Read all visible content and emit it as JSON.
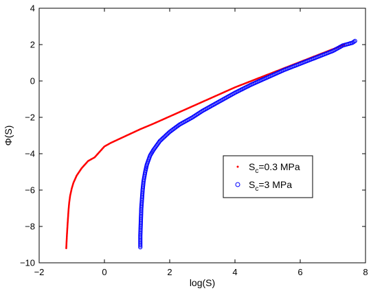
{
  "chart_data": {
    "type": "scatter",
    "xlabel": "log(S)",
    "ylabel": "Φ(S)",
    "xlim": [
      -2,
      8
    ],
    "ylim": [
      -10,
      4
    ],
    "xticks": [
      -2,
      0,
      2,
      4,
      6,
      8
    ],
    "yticks": [
      -10,
      -8,
      -6,
      -4,
      -2,
      0,
      2,
      4
    ],
    "xtick_labels": [
      "−2",
      "0",
      "2",
      "4",
      "6",
      "8"
    ],
    "ytick_labels": [
      "−10",
      "−8",
      "−6",
      "−4",
      "−2",
      "0",
      "2",
      "4"
    ],
    "grid": false,
    "legend_position": "right, lower-middle",
    "series": [
      {
        "legend_parts": {
          "base": "S",
          "sub": "c",
          "rest": "=0.3 MPa"
        },
        "marker": "dot",
        "color": "#ff0000",
        "x": [
          -1.17,
          -1.15,
          -1.13,
          -1.1,
          -1.08,
          -1.05,
          -1.0,
          -0.95,
          -0.85,
          -0.7,
          -0.5,
          -0.3,
          -0.1,
          0.0,
          0.2,
          0.5,
          0.8,
          1.1,
          1.5,
          2.0,
          2.5,
          3.0,
          3.5,
          4.0,
          4.5,
          5.0,
          5.5,
          6.0,
          6.5,
          7.0,
          7.35
        ],
        "y": [
          -9.2,
          -8.5,
          -7.9,
          -7.1,
          -6.7,
          -6.3,
          -5.9,
          -5.6,
          -5.2,
          -4.8,
          -4.4,
          -4.2,
          -3.8,
          -3.6,
          -3.4,
          -3.15,
          -2.9,
          -2.65,
          -2.35,
          -1.95,
          -1.55,
          -1.15,
          -0.75,
          -0.35,
          0.0,
          0.35,
          0.7,
          1.05,
          1.4,
          1.75,
          2.0
        ]
      },
      {
        "legend_parts": {
          "base": "S",
          "sub": "c",
          "rest": "=3 MPa"
        },
        "marker": "circle",
        "color": "#0000ff",
        "x": [
          1.1,
          1.1,
          1.11,
          1.12,
          1.13,
          1.15,
          1.17,
          1.2,
          1.25,
          1.3,
          1.4,
          1.5,
          1.7,
          2.0,
          2.3,
          2.7,
          3.0,
          3.5,
          4.0,
          4.5,
          5.0,
          5.5,
          6.0,
          6.5,
          7.0,
          7.3,
          7.5,
          7.6,
          7.68
        ],
        "y": [
          -9.15,
          -8.5,
          -8.0,
          -7.5,
          -7.0,
          -6.5,
          -6.0,
          -5.5,
          -5.0,
          -4.6,
          -4.1,
          -3.8,
          -3.3,
          -2.8,
          -2.4,
          -2.0,
          -1.65,
          -1.15,
          -0.65,
          -0.2,
          0.2,
          0.6,
          0.95,
          1.3,
          1.65,
          1.95,
          2.05,
          2.1,
          2.2
        ]
      }
    ]
  }
}
